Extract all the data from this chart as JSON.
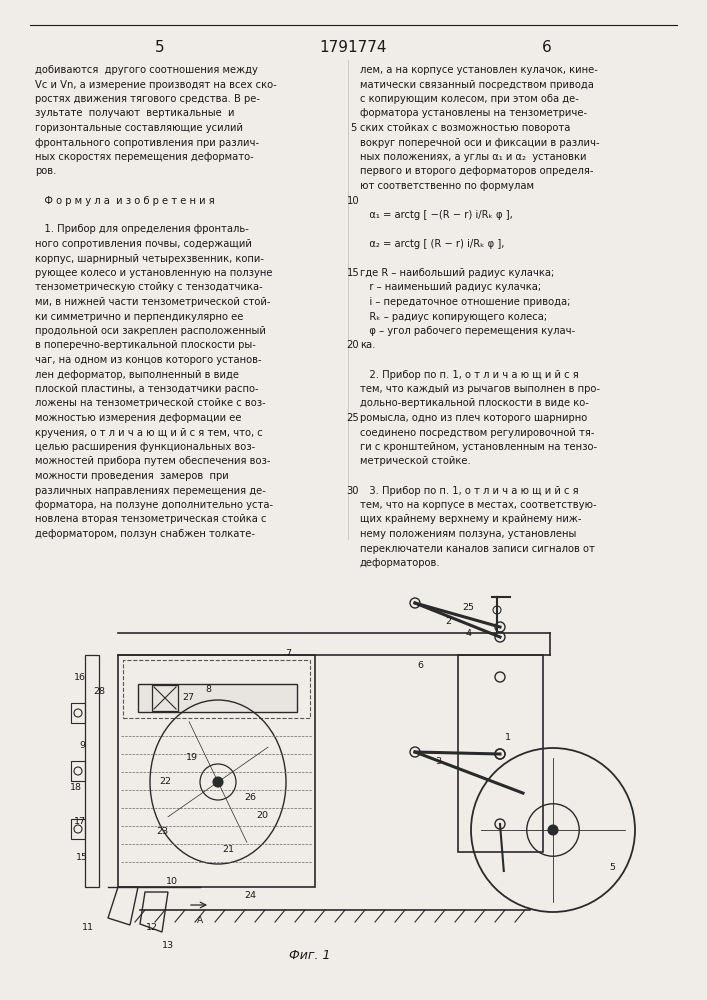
{
  "page_number_left": "5",
  "patent_number": "1791774",
  "page_number_right": "6",
  "background_color": "#f0ede8",
  "text_color": "#1a1a1a",
  "left_column_lines": [
    "добиваются  другого соотношения между",
    "Vc и Vn, а измерение производят на всех ско-",
    "ростях движения тягового средства. В ре-",
    "зультате  получают  вертикальные  и",
    "горизонтальные составляющие усилий",
    "фронтального сопротивления при различ-",
    "ных скоростях перемещения деформато-",
    "ров.",
    "",
    "   Ф о р м у л а  и з о б р е т е н и я",
    "",
    "   1. Прибор для определения фронталь-",
    "ного сопротивления почвы, содержащий",
    "корпус, шарнирный четырехзвенник, копи-",
    "рующее колесо и установленную на ползуне",
    "тензометрическую стойку с тензодатчика-",
    "ми, в нижней части тензометрической стой-",
    "ки симметрично и перпендикулярно ее",
    "продольной оси закреплен расположенный",
    "в поперечно-вертикальной плоскости ры-",
    "чаг, на одном из концов которого установ-",
    "лен деформатор, выполненный в виде",
    "плоской пластины, а тензодатчики распо-",
    "ложены на тензометрической стойке с воз-",
    "можностью измерения деформации ее",
    "кручения, о т л и ч а ю щ и й с я тем, что, с",
    "целью расширения функциональных воз-",
    "можностей прибора путем обеспечения воз-",
    "можности проведения  замеров  при",
    "различных направлениях перемещения де-",
    "форматора, на ползуне дополнительно уста-",
    "новлена вторая тензометрическая стойка с",
    "деформатором, ползун снабжен толкате-"
  ],
  "right_column_lines": [
    "лем, а на корпусе установлен кулачок, кине-",
    "матически связанный посредством привода",
    "с копирующим колесом, при этом оба де-",
    "форматора установлены на тензометриче-",
    "ских стойках с возможностью поворота",
    "вокруг поперечной оси и фиксации в различ-",
    "ных положениях, а углы α₁ и α₂  установки",
    "первого и второго деформаторов определя-",
    "ют соответственно по формулам",
    "",
    "   α₁ = arctg [ −(R − r) i/Rₖ φ ],",
    "",
    "   α₂ = arctg [ (R − r) i/Rₖ φ ],",
    "",
    "где R – наибольший радиус кулачка;",
    "   r – наименьший радиус кулачка;",
    "   i – передаточное отношение привода;",
    "   Rₖ – радиус копирующего колеса;",
    "   φ – угол рабочего перемещения кулач-",
    "ка.",
    "",
    "   2. Прибор по п. 1, о т л и ч а ю щ и й с я",
    "тем, что каждый из рычагов выполнен в про-",
    "дольно-вертикальной плоскости в виде ко-",
    "ромысла, одно из плеч которого шарнирно",
    "соединено посредством регулировочной тя-",
    "ги с кронштейном, установленным на тензо-",
    "метрической стойке.",
    "",
    "   3. Прибор по п. 1, о т л и ч а ю щ и й с я",
    "тем, что на корпусе в местах, соответствую-",
    "щих крайнему верхнему и крайнему ниж-",
    "нему положениям ползуна, установлены",
    "переключатели каналов записи сигналов от",
    "деформаторов."
  ],
  "line_numbers": [
    5,
    10,
    15,
    20,
    25,
    30
  ],
  "line_number_positions": [
    4,
    9,
    14,
    19,
    24,
    29
  ],
  "diagram_caption": "Фиг. 1"
}
